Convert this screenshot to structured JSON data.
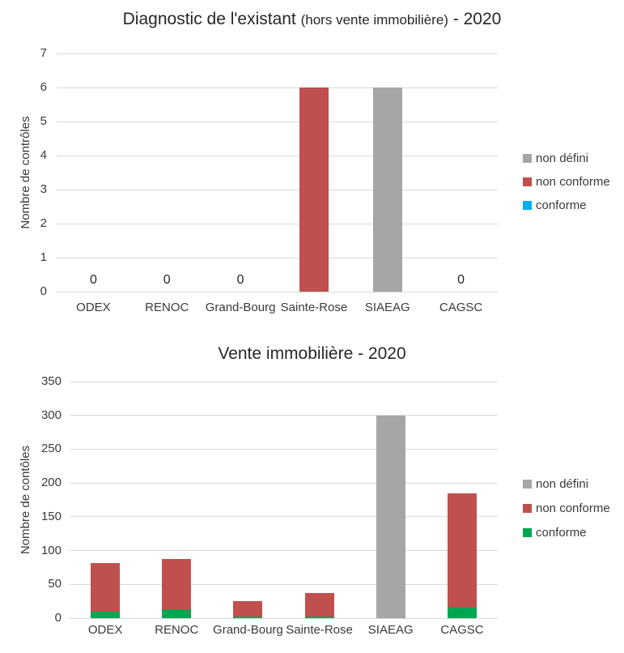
{
  "page": {
    "background": "#ffffff"
  },
  "chart_data": [
    {
      "type": "bar",
      "stacked": true,
      "title": "Diagnostic de l'existant (hors vente immobilière) - 2020",
      "title_parts": {
        "main": "Diagnostic de l'existant ",
        "paren": "(hors vente immobilière)",
        "suffix": " - 2020"
      },
      "ylabel": "Nombre de contrôles",
      "xlabel": "",
      "ylim": [
        0,
        7
      ],
      "yticks": [
        0,
        1,
        2,
        3,
        4,
        5,
        6,
        7
      ],
      "grid": true,
      "legend_position": "right",
      "categories": [
        "ODEX",
        "RENOC",
        "Grand-Bourg",
        "Sainte-Rose",
        "SIAEAG",
        "CAGSC"
      ],
      "series": [
        {
          "name": "conforme",
          "color": "#00B0F0",
          "values": [
            0,
            0,
            0,
            0,
            0,
            0
          ]
        },
        {
          "name": "non conforme",
          "color": "#C0504D",
          "values": [
            0,
            0,
            0,
            6,
            0,
            0
          ]
        },
        {
          "name": "non défini",
          "color": "#A6A6A6",
          "values": [
            0,
            0,
            0,
            0,
            6,
            0
          ]
        }
      ],
      "legend": [
        {
          "label": "non défini",
          "color": "#A6A6A6"
        },
        {
          "label": "non conforme",
          "color": "#C0504D"
        },
        {
          "label": "conforme",
          "color": "#00B0F0"
        }
      ],
      "zero_value_labels": [
        true,
        true,
        true,
        false,
        false,
        true
      ]
    },
    {
      "type": "bar",
      "stacked": true,
      "title": "Vente immobilière - 2020",
      "title_parts": {
        "main": "Vente immobilière - 2020",
        "paren": "",
        "suffix": ""
      },
      "ylabel": "Nombre de contôles",
      "xlabel": "",
      "ylim": [
        0,
        350
      ],
      "yticks": [
        0,
        50,
        100,
        150,
        200,
        250,
        300,
        350
      ],
      "grid": true,
      "legend_position": "right",
      "categories": [
        "ODEX",
        "RENOC",
        "Grand-Bourg",
        "Sainte-Rose",
        "SIAEAG",
        "CAGSC"
      ],
      "series": [
        {
          "name": "conforme",
          "color": "#00A651",
          "values": [
            10,
            12,
            2,
            2,
            0,
            15
          ]
        },
        {
          "name": "non conforme",
          "color": "#C0504D",
          "values": [
            71,
            76,
            23,
            35,
            0,
            170
          ]
        },
        {
          "name": "non défini",
          "color": "#A6A6A6",
          "values": [
            0,
            0,
            0,
            0,
            300,
            0
          ]
        }
      ],
      "legend": [
        {
          "label": "non défini",
          "color": "#A6A6A6"
        },
        {
          "label": "non conforme",
          "color": "#C0504D"
        },
        {
          "label": "conforme",
          "color": "#00A651"
        }
      ],
      "zero_value_labels": [
        false,
        false,
        false,
        false,
        false,
        false
      ]
    }
  ]
}
